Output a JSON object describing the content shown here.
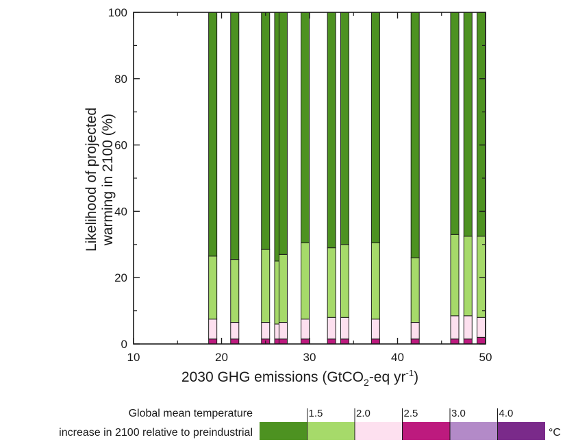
{
  "chart_data": {
    "type": "bar",
    "stacked": true,
    "xlabel": "2030 GHG emissions (GtCO",
    "xlabel_sub": "2",
    "xlabel_tail": "-eq yr",
    "xlabel_sup": "-1",
    "xlabel_close": ")",
    "ylabel_line1": "Likelihood of projected",
    "ylabel_line2": "warming in 2100 (%)",
    "xlim": [
      10,
      50
    ],
    "ylim": [
      0,
      100
    ],
    "x_ticks": [
      "10",
      "20",
      "30",
      "40",
      "50"
    ],
    "y_ticks": [
      "0",
      "20",
      "40",
      "60",
      "80",
      "100"
    ],
    "grid": false,
    "series": [
      {
        "color": "#bd1a7e"
      },
      {
        "color": "#fde0ef"
      },
      {
        "color": "#a6da6a"
      },
      {
        "color": "#4d9221"
      }
    ],
    "bars": [
      {
        "x": 19.0,
        "values": [
          1.5,
          6.0,
          19.0,
          73.5
        ]
      },
      {
        "x": 21.5,
        "values": [
          1.5,
          5.0,
          19.0,
          74.5
        ]
      },
      {
        "x": 25.0,
        "values": [
          1.5,
          5.0,
          22.0,
          71.5
        ]
      },
      {
        "x": 26.5,
        "values": [
          1.5,
          4.5,
          19.0,
          75.0
        ]
      },
      {
        "x": 27.0,
        "values": [
          1.5,
          5.0,
          20.5,
          73.0
        ]
      },
      {
        "x": 29.5,
        "values": [
          1.5,
          6.0,
          23.0,
          69.5
        ]
      },
      {
        "x": 32.5,
        "values": [
          1.5,
          6.5,
          21.0,
          71.0
        ]
      },
      {
        "x": 34.0,
        "values": [
          1.5,
          6.5,
          22.0,
          70.0
        ]
      },
      {
        "x": 37.5,
        "values": [
          1.5,
          6.0,
          23.0,
          69.5
        ]
      },
      {
        "x": 42.0,
        "values": [
          1.5,
          5.0,
          19.5,
          74.0
        ]
      },
      {
        "x": 46.5,
        "values": [
          1.5,
          7.0,
          24.5,
          67.0
        ]
      },
      {
        "x": 48.0,
        "values": [
          1.5,
          7.0,
          24.0,
          67.5
        ]
      },
      {
        "x": 49.5,
        "values": [
          2.0,
          6.0,
          24.5,
          67.5
        ]
      }
    ]
  },
  "legend": {
    "caption_line1": "Global mean temperature",
    "caption_line2": "increase in 2100 relative to preindustrial",
    "unit": "°C",
    "thresholds": [
      "1.5",
      "2.0",
      "2.5",
      "3.0",
      "4.0"
    ],
    "colors": [
      "#4d9221",
      "#a6da6a",
      "#fde0ef",
      "#bd1a7e",
      "#b38ac8",
      "#7a2a8a"
    ]
  }
}
